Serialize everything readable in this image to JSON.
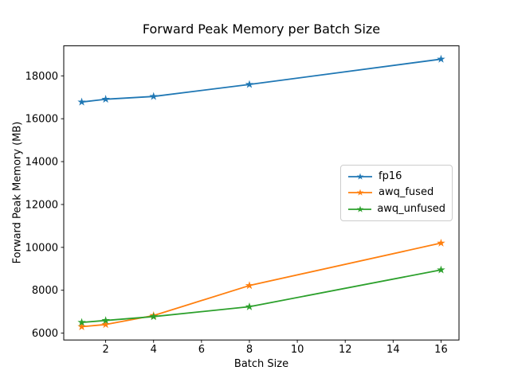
{
  "chart_data": {
    "type": "line",
    "title": "Forward Peak Memory per Batch Size",
    "xlabel": "Batch Size",
    "ylabel": "Forward Peak Memory (MB)",
    "x": [
      1,
      2,
      4,
      8,
      16
    ],
    "series": [
      {
        "name": "fp16",
        "color": "#1f77b4",
        "marker": "star",
        "values": [
          16780,
          16910,
          17040,
          17600,
          18780
        ]
      },
      {
        "name": "awq_fused",
        "color": "#ff7f0e",
        "marker": "star",
        "values": [
          6300,
          6400,
          6820,
          8220,
          10200
        ]
      },
      {
        "name": "awq_unfused",
        "color": "#2ca02c",
        "marker": "star",
        "values": [
          6500,
          6590,
          6770,
          7230,
          8950
        ]
      }
    ],
    "xticks": [
      2,
      4,
      6,
      8,
      10,
      12,
      14,
      16
    ],
    "yticks": [
      6000,
      8000,
      10000,
      12000,
      14000,
      16000,
      18000
    ],
    "xlim": [
      0.25,
      16.75
    ],
    "ylim": [
      5680,
      19400
    ],
    "grid": false,
    "legend_position": "center-right",
    "axes_color": "#000000",
    "background": "#ffffff"
  }
}
